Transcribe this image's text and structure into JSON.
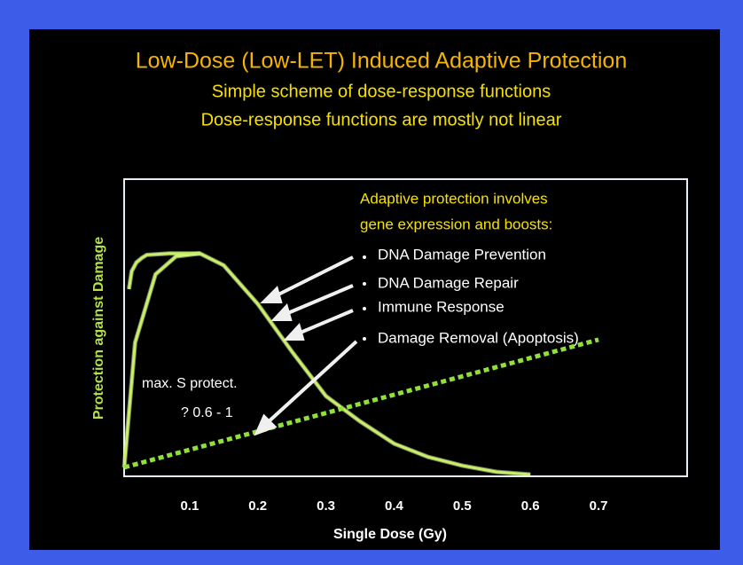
{
  "chart_data": {
    "type": "line",
    "title": "Low-Dose (Low-LET) Induced Adaptive Protection",
    "subtitle": [
      "Simple scheme of dose-response functions",
      "Dose-response functions are mostly not linear"
    ],
    "x_label": "Single Dose (Gy)",
    "y_label": "Protection against Damage",
    "xlim": [
      0,
      0.83
    ],
    "xticks": [
      0.1,
      0.2,
      0.3,
      0.4,
      0.5,
      0.6,
      0.7
    ],
    "ylim": [
      0,
      1
    ],
    "series": [
      {
        "color": "#c8f064",
        "style": "solid",
        "x": [
          0.004,
          0.02,
          0.05,
          0.08,
          0.115,
          0.15,
          0.2,
          0.25,
          0.3,
          0.35,
          0.4,
          0.45,
          0.5,
          0.55,
          0.6
        ],
        "values": [
          0.03,
          0.45,
          0.68,
          0.74,
          0.75,
          0.71,
          0.58,
          0.42,
          0.27,
          0.185,
          0.11,
          0.065,
          0.036,
          0.015,
          0.006
        ]
      },
      {
        "color": "#c8f064",
        "style": "solid",
        "x": [
          0.011,
          0.015,
          0.022,
          0.03,
          0.037,
          0.07,
          0.115
        ],
        "values": [
          0.63,
          0.69,
          0.72,
          0.735,
          0.745,
          0.75,
          0.75
        ]
      },
      {
        "color": "#8fe03a",
        "style": "dotted",
        "x": [
          0.004,
          0.7
        ],
        "values": [
          0.03,
          0.46
        ]
      }
    ],
    "annotations": {
      "header": [
        "Adaptive protection involves",
        "gene expression and boosts:"
      ],
      "bullets": [
        "DNA Damage Prevention",
        "DNA Damage Repair",
        "Immune Response",
        "Damage Removal (Apoptosis)"
      ],
      "note": [
        "max. S protect.",
        "? 0.6 - 1"
      ]
    }
  }
}
